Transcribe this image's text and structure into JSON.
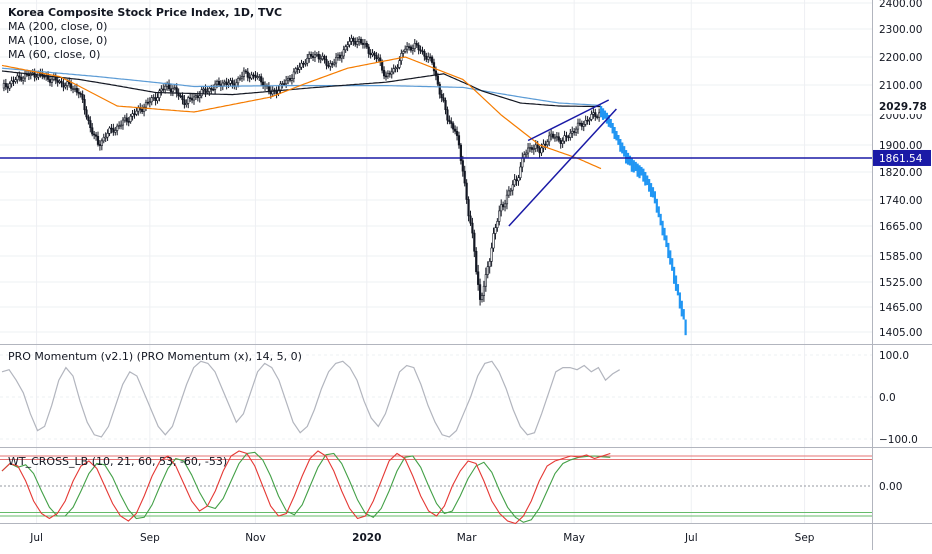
{
  "legend": {
    "title": "Korea Composite Stock Price Index, 1D, TVC",
    "ma200": "MA (200, close, 0)",
    "ma100": "MA (100, close, 0)",
    "ma60": "MA (60, close, 0)",
    "momentum": "PRO Momentum (v2.1) (PRO Momentum (x), 14, 5, 0)",
    "wt": "WT_CROSS_LB (10, 21, 60, 53, -60, -53)"
  },
  "colors": {
    "up": "#131722",
    "down": "#131722",
    "projection": "#2196f3",
    "ma200": "#131722",
    "ma100": "#5b9bd5",
    "ma60": "#f57c00",
    "support": "#1a1aa6",
    "wedge": "#1a1aa6",
    "momentum": "#b2b5be",
    "wt1": "#e53935",
    "wt2": "#43a047",
    "grid": "#eef0f3"
  },
  "chart_data": [
    {
      "type": "candlestick",
      "title": "Korea Composite Stock Price Index, 1D, TVC",
      "x_ticks": [
        "Jul",
        "Sep",
        "Nov",
        "2020",
        "Mar",
        "May",
        "Jul",
        "Sep"
      ],
      "y_ticks": [
        1405,
        1465,
        1525,
        1585,
        1665,
        1740,
        1820,
        1900,
        2000,
        2100,
        2200,
        2300,
        2400
      ],
      "y_tick_labels": [
        "1405.00",
        "1465.00",
        "1525.00",
        "1585.00",
        "1665.00",
        "1740.00",
        "1820.00",
        "1900.00",
        "2000.00",
        "2100.00",
        "2200.00",
        "2300.00",
        "2400.00"
      ],
      "last_price_label": "2029.78",
      "support_label": "1861.54",
      "support_level": 1861.54,
      "close_anchors": [
        [
          0,
          2090
        ],
        [
          10,
          2130
        ],
        [
          18,
          2140
        ],
        [
          26,
          2120
        ],
        [
          34,
          2100
        ],
        [
          40,
          2080
        ],
        [
          46,
          1960
        ],
        [
          50,
          1900
        ],
        [
          55,
          1940
        ],
        [
          60,
          1960
        ],
        [
          66,
          1990
        ],
        [
          72,
          2020
        ],
        [
          80,
          2060
        ],
        [
          86,
          2100
        ],
        [
          90,
          2080
        ],
        [
          96,
          2040
        ],
        [
          100,
          2060
        ],
        [
          106,
          2080
        ],
        [
          112,
          2100
        ],
        [
          116,
          2110
        ],
        [
          120,
          2100
        ],
        [
          126,
          2140
        ],
        [
          132,
          2130
        ],
        [
          136,
          2110
        ],
        [
          140,
          2070
        ],
        [
          146,
          2100
        ],
        [
          152,
          2140
        ],
        [
          158,
          2190
        ],
        [
          164,
          2210
        ],
        [
          170,
          2170
        ],
        [
          176,
          2200
        ],
        [
          180,
          2250
        ],
        [
          186,
          2260
        ],
        [
          190,
          2230
        ],
        [
          196,
          2190
        ],
        [
          200,
          2130
        ],
        [
          204,
          2150
        ],
        [
          210,
          2230
        ],
        [
          215,
          2240
        ],
        [
          220,
          2210
        ],
        [
          224,
          2180
        ],
        [
          228,
          2080
        ],
        [
          232,
          1990
        ],
        [
          236,
          1950
        ],
        [
          240,
          1830
        ],
        [
          243,
          1700
        ],
        [
          246,
          1600
        ],
        [
          249,
          1480
        ],
        [
          252,
          1530
        ],
        [
          256,
          1640
        ],
        [
          260,
          1720
        ],
        [
          264,
          1760
        ],
        [
          268,
          1800
        ],
        [
          272,
          1870
        ],
        [
          276,
          1900
        ],
        [
          280,
          1880
        ],
        [
          284,
          1920
        ],
        [
          288,
          1930
        ],
        [
          292,
          1910
        ],
        [
          296,
          1940
        ],
        [
          300,
          1960
        ],
        [
          306,
          1990
        ],
        [
          312,
          2010
        ]
      ],
      "projection": [
        [
          312,
          2029.78
        ],
        [
          316,
          2000
        ],
        [
          319,
          1960
        ],
        [
          322,
          1920
        ],
        [
          325,
          1885
        ],
        [
          328,
          1860
        ],
        [
          331,
          1845
        ],
        [
          334,
          1830
        ],
        [
          337,
          1800
        ],
        [
          340,
          1765
        ],
        [
          343,
          1700
        ],
        [
          346,
          1640
        ],
        [
          349,
          1580
        ],
        [
          352,
          1520
        ],
        [
          355,
          1460
        ],
        [
          357,
          1410
        ]
      ],
      "ma200_anchors": [
        [
          0,
          2150
        ],
        [
          40,
          2120
        ],
        [
          80,
          2075
        ],
        [
          120,
          2068
        ],
        [
          160,
          2090
        ],
        [
          200,
          2110
        ],
        [
          230,
          2140
        ],
        [
          250,
          2080
        ],
        [
          270,
          2040
        ],
        [
          290,
          2030
        ],
        [
          312,
          2028
        ]
      ],
      "ma100_anchors": [
        [
          0,
          2160
        ],
        [
          50,
          2130
        ],
        [
          100,
          2095
        ],
        [
          150,
          2098
        ],
        [
          200,
          2098
        ],
        [
          240,
          2092
        ],
        [
          270,
          2060
        ],
        [
          290,
          2040
        ],
        [
          312,
          2032
        ]
      ],
      "ma60_anchors": [
        [
          0,
          2170
        ],
        [
          30,
          2130
        ],
        [
          60,
          2030
        ],
        [
          100,
          2010
        ],
        [
          140,
          2060
        ],
        [
          180,
          2160
        ],
        [
          210,
          2200
        ],
        [
          240,
          2120
        ],
        [
          260,
          2000
        ],
        [
          280,
          1900
        ],
        [
          300,
          1860
        ],
        [
          312,
          1830
        ]
      ],
      "wedge_upper": [
        [
          274,
          1915
        ],
        [
          316,
          2050
        ]
      ],
      "wedge_lower": [
        [
          264,
          1665
        ],
        [
          320,
          2020
        ]
      ]
    },
    {
      "type": "line",
      "title": "PRO Momentum (v2.1) (PRO Momentum (x), 14, 5, 0)",
      "y_ticks": [
        -100,
        0,
        100
      ],
      "y_tick_labels": [
        "−100.0",
        "0.0",
        "100.0"
      ],
      "values": [
        60,
        65,
        40,
        10,
        -40,
        -80,
        -70,
        -20,
        40,
        70,
        50,
        -10,
        -60,
        -90,
        -95,
        -70,
        -20,
        30,
        60,
        50,
        10,
        -30,
        -70,
        -90,
        -70,
        -20,
        30,
        70,
        85,
        80,
        60,
        20,
        -20,
        -60,
        -40,
        10,
        60,
        80,
        70,
        40,
        -10,
        -60,
        -85,
        -70,
        -30,
        20,
        60,
        80,
        85,
        70,
        40,
        -10,
        -50,
        -70,
        -40,
        10,
        60,
        75,
        70,
        30,
        -20,
        -60,
        -90,
        -95,
        -80,
        -40,
        0,
        50,
        80,
        85,
        60,
        20,
        -30,
        -70,
        -90,
        -85,
        -40,
        10,
        60,
        70,
        70,
        65,
        75,
        60,
        70,
        40,
        55,
        65
      ]
    },
    {
      "type": "line",
      "title": "WT_CROSS_LB (10, 21, 60, 53, -60, -53)",
      "y_ticks": [
        0
      ],
      "y_tick_labels": [
        "0.00"
      ],
      "levels": [
        60,
        53,
        -53,
        -60
      ],
      "values": [
        30,
        45,
        40,
        10,
        -30,
        -55,
        -65,
        -55,
        -30,
        10,
        40,
        50,
        35,
        0,
        -35,
        -60,
        -70,
        -55,
        -20,
        20,
        50,
        60,
        40,
        5,
        -30,
        -50,
        -40,
        -10,
        30,
        60,
        70,
        65,
        40,
        0,
        -40,
        -60,
        -55,
        -20,
        20,
        55,
        70,
        60,
        30,
        -10,
        -45,
        -65,
        -60,
        -30,
        10,
        50,
        65,
        55,
        20,
        -20,
        -50,
        -60,
        -40,
        0,
        30,
        50,
        45,
        10,
        -30,
        -55,
        -70,
        -75,
        -60,
        -30,
        10,
        40,
        50,
        55,
        60,
        58,
        62,
        55,
        60,
        65
      ]
    }
  ],
  "x_axis": {
    "labels": [
      "Jul",
      "Sep",
      "Nov",
      "2020",
      "Mar",
      "May",
      "Jul",
      "Sep"
    ]
  }
}
